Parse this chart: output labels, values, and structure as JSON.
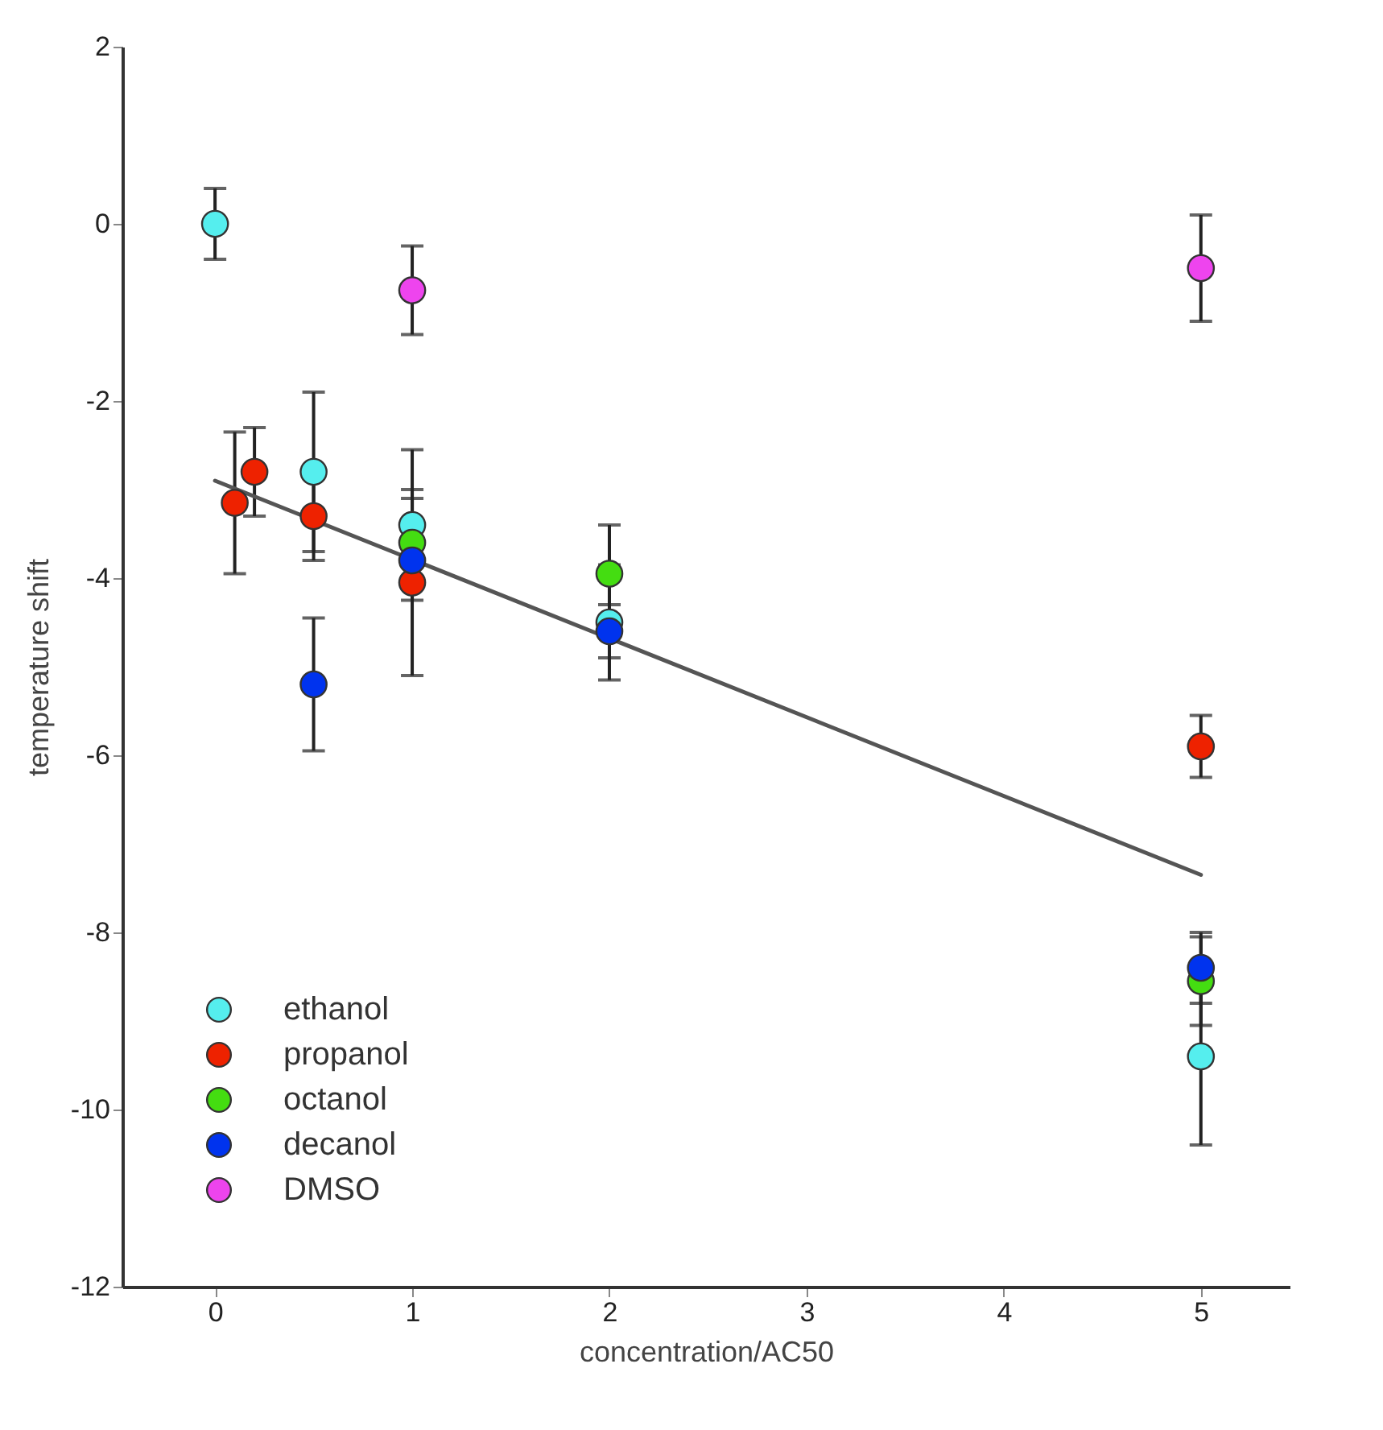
{
  "chart_data": {
    "type": "scatter",
    "xlabel": "concentration/AC50",
    "ylabel": "temperature shift",
    "xlim": [
      -0.47,
      5.45
    ],
    "xticks": [
      0,
      1,
      2,
      3,
      4,
      5
    ],
    "ylim": [
      -12,
      2
    ],
    "yticks": [
      -12,
      -10,
      -8,
      -6,
      -4,
      -2,
      0,
      2
    ],
    "grid": false,
    "legend": "bottom left",
    "marker": "circle",
    "series": [
      {
        "name": "ethanol",
        "color": "#55eeee",
        "x": [
          0,
          0.5,
          1,
          2,
          5
        ],
        "values": [
          0,
          -2.8,
          -3.4,
          -4.5,
          -9.4
        ],
        "errors": [
          0.4,
          0.9,
          0.85,
          0.65,
          1.0
        ]
      },
      {
        "name": "propanol",
        "color": "#ee2200",
        "x": [
          0.1,
          0.2,
          0.5,
          1,
          5
        ],
        "values": [
          -3.15,
          -2.8,
          -3.3,
          -4.05,
          -5.9
        ],
        "errors": [
          0.8,
          0.5,
          0.5,
          1.05,
          0.35
        ]
      },
      {
        "name": "octanol",
        "color": "#44dd11",
        "x": [
          1,
          2,
          5
        ],
        "values": [
          -3.6,
          -3.95,
          -8.55
        ],
        "errors": [
          0.5,
          0.55,
          0.5
        ]
      },
      {
        "name": "decanol",
        "color": "#0033ee",
        "x": [
          0.5,
          1,
          2,
          5
        ],
        "values": [
          -5.2,
          -3.8,
          -4.6,
          -8.4
        ],
        "errors": [
          0.75,
          null,
          0.3,
          0.4
        ]
      },
      {
        "name": "DMSO",
        "color": "#ee44ee",
        "x": [
          1,
          5
        ],
        "values": [
          -0.75,
          -0.5
        ],
        "errors": [
          0.5,
          0.6
        ]
      },
      {
        "type": "line",
        "color": "#555555",
        "marker": "none",
        "x": [
          0,
          5
        ],
        "values": [
          -2.9,
          -7.35
        ]
      }
    ]
  }
}
